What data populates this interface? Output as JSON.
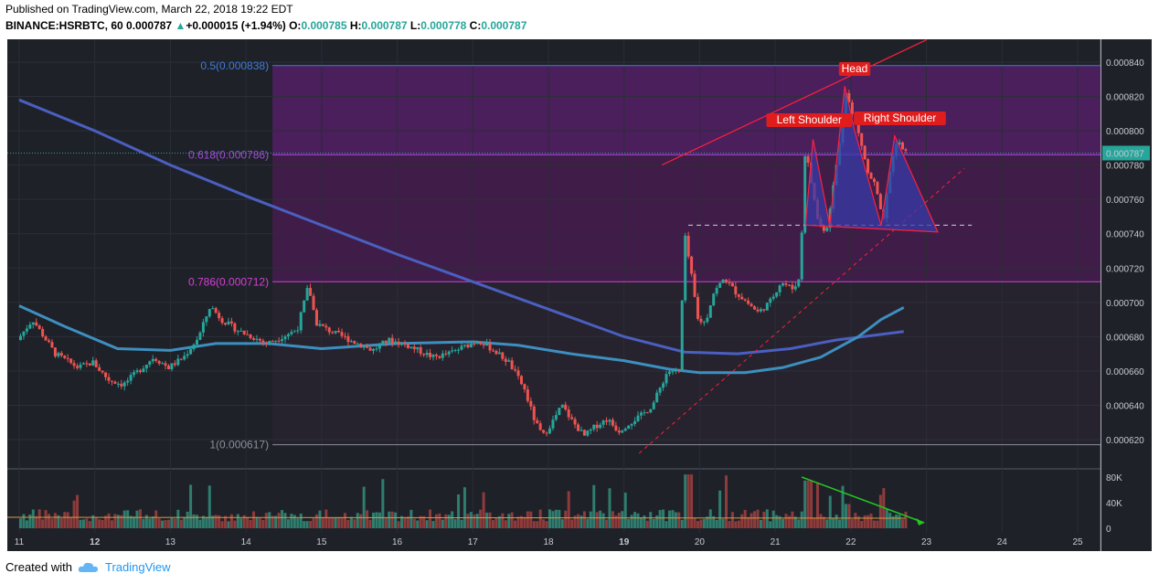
{
  "header": {
    "published": "Published on TradingView.com, March 22, 2018 19:22 EDT",
    "symbol": "BINANCE:HSRBTC, 60",
    "last": "0.000787",
    "change": "+0.000015 (+1.94%)",
    "o_label": "O:",
    "o_value": "0.000785",
    "h_label": "H:",
    "h_value": "0.000787",
    "l_label": "L:",
    "l_value": "0.000778",
    "c_label": "C:",
    "c_value": "0.000787"
  },
  "footer": {
    "created": "Created with",
    "brand": "TradingView"
  },
  "colors": {
    "background": "#1f2129",
    "fib_zone": "#5a1f63",
    "up": "#26a69a",
    "down": "#ef5350",
    "ma_blue": "#4a6fd1",
    "ma_teal": "#3d8fbf",
    "pattern": "#ff1f3a",
    "volume_trend": "#22c722"
  },
  "chart_data": {
    "type": "candlestick",
    "title": "BINANCE:HSRBTC, 60",
    "x_ticks": [
      "11",
      "12",
      "13",
      "14",
      "15",
      "16",
      "17",
      "18",
      "19",
      "20",
      "21",
      "22",
      "23",
      "24",
      "25"
    ],
    "y_ticks": [
      "0.000840",
      "0.000820",
      "0.000800",
      "0.000780",
      "0.000760",
      "0.000740",
      "0.000720",
      "0.000700",
      "0.000680",
      "0.000660",
      "0.000640",
      "0.000620"
    ],
    "ylim": [
      0.000605,
      0.000848
    ],
    "current_price_label": "0.000787",
    "fib_levels": [
      {
        "label": "0.5(0.000838)",
        "value": 0.000838
      },
      {
        "label": "0.618(0.000786)",
        "value": 0.000786
      },
      {
        "label": "0.786(0.000712)",
        "value": 0.000712
      },
      {
        "label": "1(0.000617)",
        "value": 0.000617
      }
    ],
    "annotations": [
      "Head",
      "Left Shoulder",
      "Right Shoulder"
    ],
    "neckline": 0.000745,
    "price_path": [
      [
        11.0,
        0.000678
      ],
      [
        11.2,
        0.00069
      ],
      [
        11.5,
        0.00067
      ],
      [
        11.8,
        0.000662
      ],
      [
        12.0,
        0.000665
      ],
      [
        12.2,
        0.000655
      ],
      [
        12.4,
        0.000652
      ],
      [
        12.6,
        0.00066
      ],
      [
        12.8,
        0.000668
      ],
      [
        13.0,
        0.000662
      ],
      [
        13.2,
        0.000668
      ],
      [
        13.4,
        0.00068
      ],
      [
        13.55,
        0.000698
      ],
      [
        13.7,
        0.00069
      ],
      [
        13.9,
        0.000684
      ],
      [
        14.1,
        0.00068
      ],
      [
        14.3,
        0.000676
      ],
      [
        14.5,
        0.00068
      ],
      [
        14.7,
        0.000684
      ],
      [
        14.85,
        0.00071
      ],
      [
        14.95,
        0.000688
      ],
      [
        15.1,
        0.000684
      ],
      [
        15.3,
        0.00068
      ],
      [
        15.5,
        0.000676
      ],
      [
        15.7,
        0.000672
      ],
      [
        15.9,
        0.000678
      ],
      [
        16.1,
        0.000676
      ],
      [
        16.3,
        0.000672
      ],
      [
        16.5,
        0.000668
      ],
      [
        16.7,
        0.00067
      ],
      [
        16.9,
        0.000674
      ],
      [
        17.1,
        0.000678
      ],
      [
        17.3,
        0.000672
      ],
      [
        17.5,
        0.000665
      ],
      [
        17.7,
        0.00065
      ],
      [
        17.85,
        0.00063
      ],
      [
        17.95,
        0.000622
      ],
      [
        18.1,
        0.000632
      ],
      [
        18.2,
        0.00064
      ],
      [
        18.35,
        0.00063
      ],
      [
        18.5,
        0.000622
      ],
      [
        18.65,
        0.000628
      ],
      [
        18.8,
        0.000632
      ],
      [
        18.95,
        0.000625
      ],
      [
        19.1,
        0.00063
      ],
      [
        19.25,
        0.000634
      ],
      [
        19.4,
        0.00064
      ],
      [
        19.5,
        0.00065
      ],
      [
        19.6,
        0.00066
      ],
      [
        19.75,
        0.00066
      ],
      [
        19.83,
        0.000738
      ],
      [
        19.9,
        0.00072
      ],
      [
        20.0,
        0.00069
      ],
      [
        20.1,
        0.000688
      ],
      [
        20.2,
        0.000705
      ],
      [
        20.35,
        0.000714
      ],
      [
        20.5,
        0.000706
      ],
      [
        20.65,
        0.0007
      ],
      [
        20.8,
        0.000694
      ],
      [
        20.95,
        0.0007
      ],
      [
        21.1,
        0.000712
      ],
      [
        21.25,
        0.000708
      ],
      [
        21.35,
        0.000714
      ],
      [
        21.42,
        0.00079
      ],
      [
        21.5,
        0.00077
      ],
      [
        21.6,
        0.000745
      ],
      [
        21.7,
        0.000742
      ],
      [
        21.8,
        0.00077
      ],
      [
        21.9,
        0.0008
      ],
      [
        21.95,
        0.000825
      ],
      [
        22.05,
        0.000808
      ],
      [
        22.15,
        0.000795
      ],
      [
        22.25,
        0.000775
      ],
      [
        22.35,
        0.000768
      ],
      [
        22.45,
        0.000745
      ],
      [
        22.55,
        0.00078
      ],
      [
        22.65,
        0.000795
      ],
      [
        22.72,
        0.000787
      ]
    ]
  }
}
